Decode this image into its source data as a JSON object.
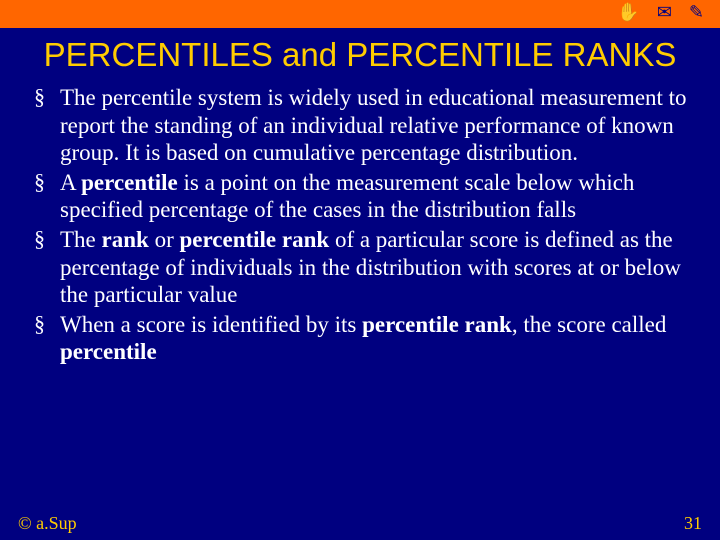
{
  "colors": {
    "background": "#000080",
    "accent_bar": "#ff6600",
    "title": "#ffcc00",
    "text": "#ffffff",
    "footer": "#ffcc00"
  },
  "typography": {
    "title_fontsize": 33,
    "body_fontsize": 23,
    "footer_fontsize": 18
  },
  "top_icons": "✋ ✉ ✎",
  "title": "PERCENTILES and PERCENTILE RANKS",
  "bullets": [
    {
      "segments": [
        {
          "text": "The percentile system is widely used in educational measurement to report the standing of an individual relative performance of known group. It is based on cumulative percentage distribution.",
          "bold": false
        }
      ]
    },
    {
      "segments": [
        {
          "text": "A ",
          "bold": false
        },
        {
          "text": "percentile",
          "bold": true
        },
        {
          "text": " is a point on the measurement scale below which specified percentage of the cases in the distribution falls",
          "bold": false
        }
      ]
    },
    {
      "segments": [
        {
          "text": "The ",
          "bold": false
        },
        {
          "text": "rank",
          "bold": true
        },
        {
          "text": " or ",
          "bold": false
        },
        {
          "text": "percentile rank",
          "bold": true
        },
        {
          "text": " of a particular score is defined as the percentage of individuals in the distribution with scores at or below the particular value",
          "bold": false
        }
      ]
    },
    {
      "segments": [
        {
          "text": "When a score is identified by its ",
          "bold": false
        },
        {
          "text": "percentile rank",
          "bold": true
        },
        {
          "text": ", the score called ",
          "bold": false
        },
        {
          "text": "percentile",
          "bold": true
        }
      ]
    }
  ],
  "footer": {
    "copyright": "© a.Sup",
    "page": "31"
  }
}
